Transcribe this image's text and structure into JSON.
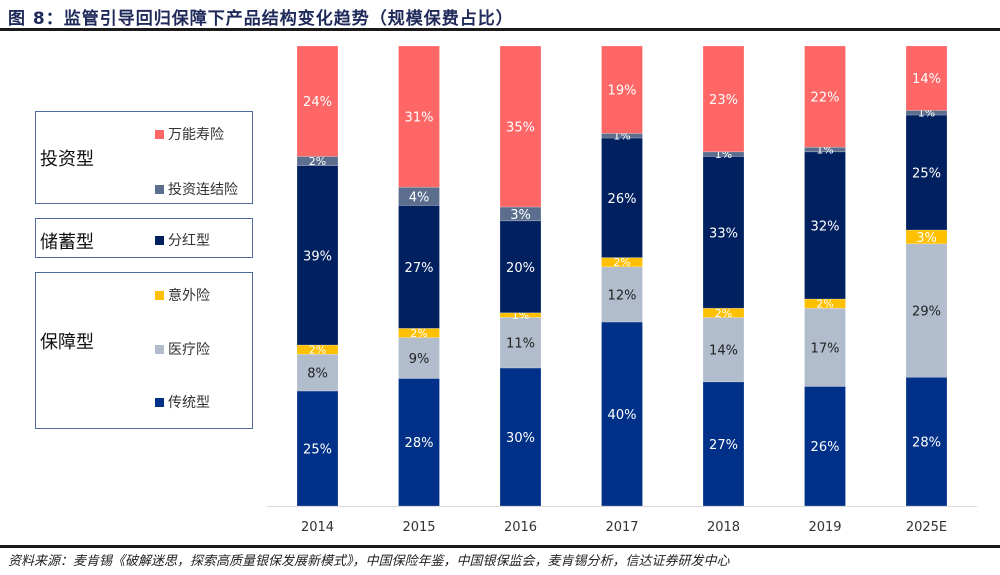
{
  "title": "图 8：监管引导回归保障下产品结构变化趋势（规模保费占比）",
  "source": "资料来源：麦肯锡《破解迷思，探索高质量银保发展新模式》，中国保险年鉴，中国银保监会，麦肯锡分析，信达证券研发中心",
  "legend_groups": [
    {
      "label": "投资型",
      "items": [
        {
          "label": "万能寿险",
          "color": "#FF6666"
        },
        {
          "label": "投资连结险",
          "color": "#5B6E8E"
        }
      ]
    },
    {
      "label": "储蓄型",
      "items": [
        {
          "label": "分红型",
          "color": "#002060"
        }
      ]
    },
    {
      "label": "保障型",
      "items": [
        {
          "label": "意外险",
          "color": "#FFC000"
        },
        {
          "label": "医疗险",
          "color": "#B1BCCD"
        },
        {
          "label": "传统型",
          "color": "#003087"
        }
      ]
    }
  ],
  "chart_data": {
    "type": "bar",
    "stacked": true,
    "title": "监管引导回归保障下产品结构变化趋势（规模保费占比）",
    "xlabel": "",
    "ylabel": "",
    "ylim": [
      0,
      100
    ],
    "grid": false,
    "legend_position": "left",
    "categories": [
      "2014",
      "2015",
      "2016",
      "2017",
      "2018",
      "2019",
      "2025E"
    ],
    "series": [
      {
        "name": "传统型",
        "color": "#003087",
        "label_color": "#ffffff",
        "values": [
          25,
          28,
          30,
          40,
          27,
          26,
          28
        ]
      },
      {
        "name": "医疗险",
        "color": "#B1BCCD",
        "label_color": "#222222",
        "values": [
          8,
          9,
          11,
          12,
          14,
          17,
          29
        ]
      },
      {
        "name": "意外险",
        "color": "#FFC000",
        "label_color": "#ffffff",
        "values": [
          2,
          2,
          1,
          2,
          2,
          2,
          3
        ]
      },
      {
        "name": "分红型",
        "color": "#002060",
        "label_color": "#ffffff",
        "values": [
          39,
          27,
          20,
          26,
          33,
          32,
          25
        ]
      },
      {
        "name": "投资连结险",
        "color": "#5B6E8E",
        "label_color": "#ffffff",
        "values": [
          2,
          4,
          3,
          1,
          1,
          1,
          1
        ]
      },
      {
        "name": "万能寿险",
        "color": "#FF6666",
        "label_color": "#ffffff",
        "values": [
          24,
          31,
          35,
          19,
          23,
          22,
          14
        ]
      }
    ]
  }
}
